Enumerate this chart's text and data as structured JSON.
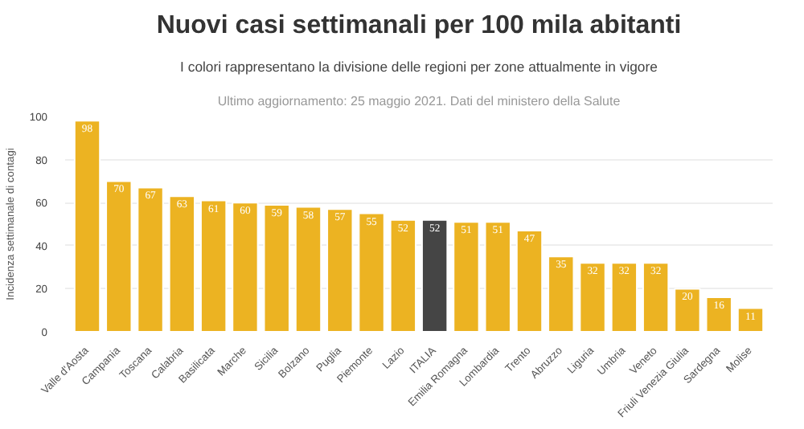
{
  "chart_data": {
    "type": "bar",
    "title": "Nuovi casi settimanali per 100 mila abitanti",
    "subtitle": "I colori rappresentano la divisione delle regioni per zone attualmente in vigore",
    "annotations": [
      "Ultimo aggiornamento: 25 maggio 2021. Dati del ministero della Salute"
    ],
    "ylabel": "Incidenza settimanale di contagi",
    "categories": [
      "Valle d'Aosta",
      "Campania",
      "Toscana",
      "Calabria",
      "Basilicata",
      "Marche",
      "Sicilia",
      "Bolzano",
      "Puglia",
      "Piemonte",
      "Lazio",
      "ITALIA",
      "Emilia Romagna",
      "Lombardia",
      "Trento",
      "Abruzzo",
      "Liguria",
      "Umbria",
      "Veneto",
      "Friuli Venezia Giulia",
      "Sardegna",
      "Molise"
    ],
    "values": [
      98,
      70,
      67,
      63,
      61,
      60,
      59,
      58,
      57,
      55,
      52,
      52,
      51,
      51,
      47,
      35,
      32,
      32,
      32,
      20,
      16,
      11
    ],
    "colors": [
      "#ecb322",
      "#ecb322",
      "#ecb322",
      "#ecb322",
      "#ecb322",
      "#ecb322",
      "#ecb322",
      "#ecb322",
      "#ecb322",
      "#ecb322",
      "#ecb322",
      "#454545",
      "#ecb322",
      "#ecb322",
      "#ecb322",
      "#ecb322",
      "#ecb322",
      "#ecb322",
      "#ecb322",
      "#ecb322",
      "#ecb322",
      "#ecb322"
    ],
    "ylim": [
      0,
      100
    ],
    "yticks": [
      0,
      20,
      40,
      60,
      80,
      100
    ],
    "grid": "y",
    "data_labels": true
  }
}
